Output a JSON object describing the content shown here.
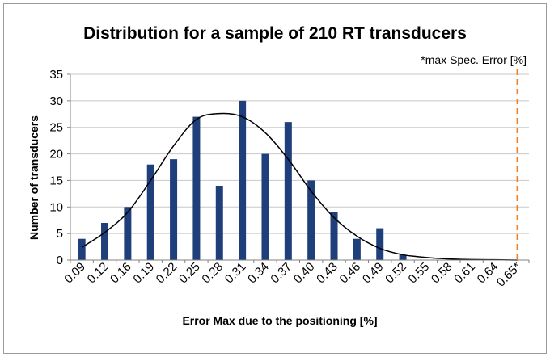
{
  "chart_data": {
    "type": "bar",
    "title": "Distribution for a sample of 210 RT transducers",
    "xlabel": "Error Max due to the positioning [%]",
    "ylabel": "Number of transducers",
    "ylim": [
      0,
      35
    ],
    "yticks": [
      "0",
      "5",
      "10",
      "15",
      "20",
      "25",
      "30",
      "35"
    ],
    "grid": true,
    "categories": [
      "0.09",
      "0.12",
      "0.16",
      "0.19",
      "0.22",
      "0.25",
      "0.28",
      "0.31",
      "0.34",
      "0.37",
      "0.40",
      "0.43",
      "0.46",
      "0.49",
      "0.52",
      "0.55",
      "0.58",
      "0.61",
      "0.64",
      "0.65*"
    ],
    "series": [
      {
        "type": "bar",
        "values": [
          4,
          7,
          10,
          18,
          19,
          27,
          14,
          30,
          20,
          26,
          15,
          9,
          4,
          6,
          1,
          0,
          0,
          0,
          0,
          null
        ],
        "color": "#1f3f7a"
      },
      {
        "type": "line",
        "values": [
          2.4,
          5.2,
          9.0,
          15.0,
          21.5,
          26.5,
          27.6,
          27.0,
          24.0,
          19.0,
          13.0,
          8.0,
          4.5,
          2.2,
          1.0,
          0.5,
          0.2,
          0.1,
          0.05,
          0
        ],
        "color": "#000000"
      }
    ],
    "annotation": {
      "text": "*max Spec. Error [%]",
      "x": "0.65*",
      "color": "#f08020"
    }
  }
}
